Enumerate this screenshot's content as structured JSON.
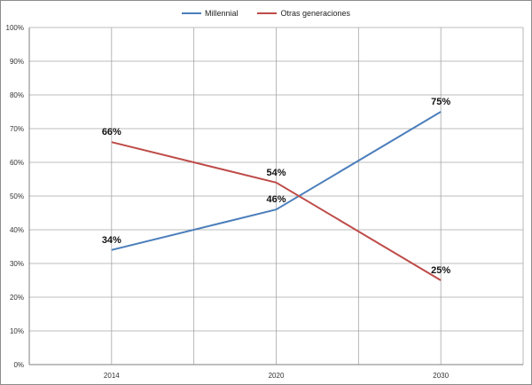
{
  "chart_data": {
    "type": "line",
    "title": "",
    "xlabel": "",
    "ylabel": "",
    "categories": [
      "2014",
      "2020",
      "2030"
    ],
    "ylim": [
      0,
      100
    ],
    "yticks": [
      "0%",
      "10%",
      "20%",
      "30%",
      "40%",
      "50%",
      "60%",
      "70%",
      "80%",
      "90%",
      "100%"
    ],
    "grid": true,
    "legend_position": "top",
    "series": [
      {
        "name": "Millennial",
        "color": "#4a7ebb",
        "values": [
          34,
          46,
          75
        ],
        "labels": [
          "34%",
          "46%",
          "75%"
        ]
      },
      {
        "name": "Otras generaciones",
        "color": "#be4b48",
        "values": [
          66,
          54,
          25
        ],
        "labels": [
          "66%",
          "54%",
          "25%"
        ]
      }
    ]
  }
}
